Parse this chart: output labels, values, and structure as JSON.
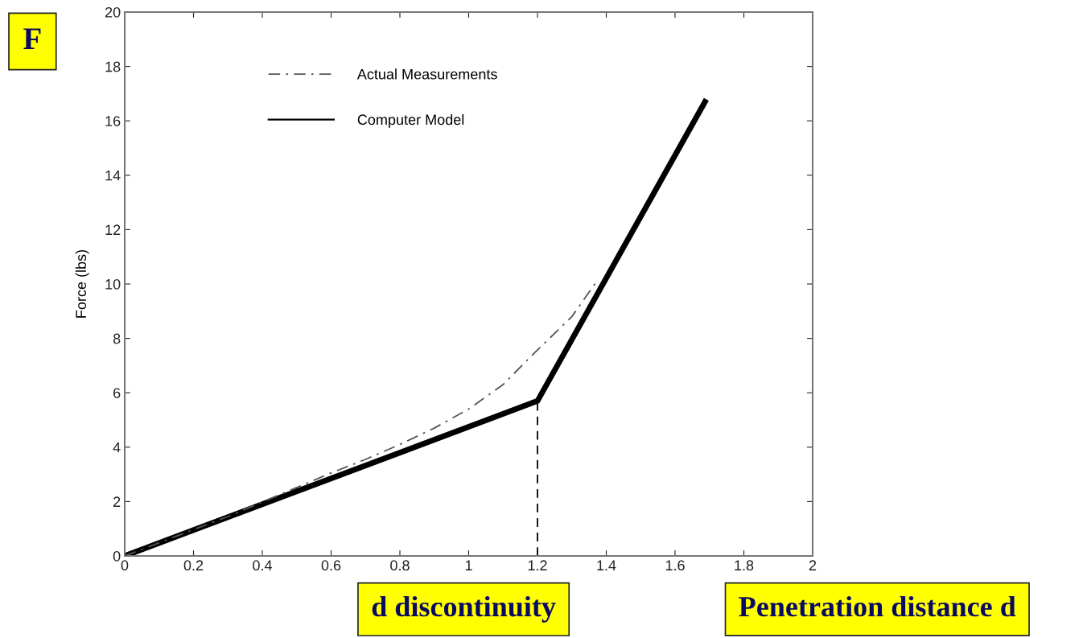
{
  "chart_data": {
    "type": "line",
    "ylabel": "Force (lbs)",
    "xlim": [
      0,
      2
    ],
    "ylim": [
      0,
      20
    ],
    "xticks": [
      0,
      0.2,
      0.4,
      0.6,
      0.8,
      1,
      1.2,
      1.4,
      1.6,
      1.8,
      2
    ],
    "yticks": [
      0,
      2,
      4,
      6,
      8,
      10,
      12,
      14,
      16,
      18,
      20
    ],
    "grid": false,
    "legend": "top left",
    "marker": "none",
    "series": [
      {
        "name": "Actual Measurements",
        "color": "#555555",
        "line_style": "dashdot",
        "x": [
          0,
          0.3,
          0.6,
          0.7,
          0.8,
          0.9,
          1.0,
          1.1,
          1.19,
          1.3,
          1.375
        ],
        "values": [
          0,
          1.45,
          3.05,
          3.55,
          4.1,
          4.7,
          5.4,
          6.3,
          7.45,
          8.8,
          10.15
        ]
      },
      {
        "name": "Computer Model",
        "color": "#000000",
        "line_style": "solid",
        "x": [
          0,
          1.2,
          1.687
        ],
        "values": [
          0,
          5.7,
          16.7
        ]
      },
      {
        "color": "#000000",
        "line_style": "dashed",
        "x": [
          1.2,
          1.2
        ],
        "values": [
          0,
          5.7
        ]
      }
    ],
    "annotations": [
      "F",
      "d discontinuity",
      "Penetration distance d"
    ]
  }
}
